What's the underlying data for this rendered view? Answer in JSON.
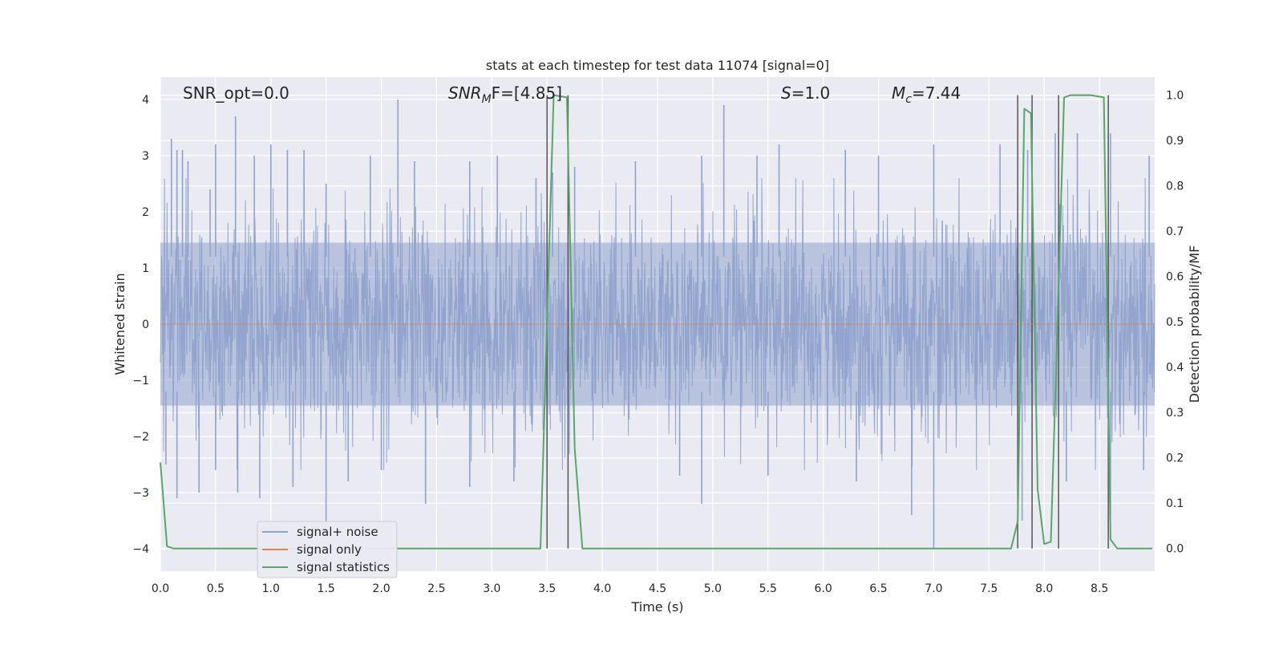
{
  "chart_data": {
    "type": "line",
    "title": "stats at each timestep for test data 11074 [signal=0]",
    "xlabel": "Time (s)",
    "ylabel_left": "Whitened strain",
    "ylabel_right": "Detection probability/MF",
    "xlim": [
      0,
      9
    ],
    "ylim_left": [
      -4.4,
      4.4
    ],
    "ylim_right": [
      -0.05,
      1.04
    ],
    "x_ticks": [
      "0.0",
      "0.5",
      "1.0",
      "1.5",
      "2.0",
      "2.5",
      "3.0",
      "3.5",
      "4.0",
      "4.5",
      "5.0",
      "5.5",
      "6.0",
      "6.5",
      "7.0",
      "7.5",
      "8.0",
      "8.5"
    ],
    "x_tick_values": [
      0,
      0.5,
      1,
      1.5,
      2,
      2.5,
      3,
      3.5,
      4,
      4.5,
      5,
      5.5,
      6,
      6.5,
      7,
      7.5,
      8,
      8.5
    ],
    "y_left_ticks": [
      "4",
      "3",
      "2",
      "1",
      "0",
      "−1",
      "−2",
      "−3",
      "−4"
    ],
    "y_left_tick_values": [
      4,
      3,
      2,
      1,
      0,
      -1,
      -2,
      -3,
      -4
    ],
    "y_right_ticks": [
      "1.0",
      "0.9",
      "0.8",
      "0.7",
      "0.6",
      "0.5",
      "0.4",
      "0.3",
      "0.2",
      "0.1",
      "0.0"
    ],
    "y_right_tick_values": [
      1.0,
      0.9,
      0.8,
      0.7,
      0.6,
      0.5,
      0.4,
      0.3,
      0.2,
      0.1,
      0.0
    ],
    "grid": true,
    "legend_position": "lower-left",
    "annotations": {
      "snr_opt": "SNR_opt=0.0",
      "snr_mf_main": "SNR",
      "snr_mf_sub": "M",
      "snr_mf_rest": "F=[4.85]",
      "s_main": "S",
      "s_rest": "=1.0",
      "mc_main": "M",
      "mc_sub": "c",
      "mc_rest": "=7.44"
    },
    "series": [
      {
        "name": "signal+ noise",
        "color": "#8fa3cc",
        "axis": "left",
        "description_values": "whitened noisy strain, roughly ±1.5 typical, peaks to about ±4",
        "peaks_x": [
          0.1,
          0.15,
          0.2,
          0.25,
          0.45,
          0.5,
          0.68,
          0.85,
          1.0,
          1.15,
          1.3,
          1.5,
          1.9,
          2.15,
          2.3,
          2.8,
          3.05,
          3.4,
          3.55,
          3.75,
          4.3,
          4.9,
          5.1,
          5.4,
          5.6,
          6.2,
          6.5,
          7.0,
          7.6,
          7.85,
          8.1,
          8.3,
          8.6,
          8.95
        ],
        "peaks_y": [
          3.3,
          3.1,
          3.1,
          2.9,
          2.4,
          3.2,
          3.7,
          3.0,
          3.2,
          3.1,
          3.1,
          2.5,
          3.0,
          4.0,
          2.9,
          2.9,
          3.0,
          2.6,
          2.7,
          2.8,
          2.9,
          3.0,
          3.9,
          3.0,
          3.2,
          3.1,
          3.0,
          3.2,
          3.2,
          3.1,
          3.4,
          3.4,
          3.4,
          3.0
        ],
        "troughs_x": [
          0.05,
          0.15,
          0.35,
          0.5,
          0.7,
          0.9,
          1.2,
          1.5,
          1.7,
          2.0,
          2.4,
          2.8,
          3.2,
          3.5,
          4.7,
          4.9,
          5.5,
          6.3,
          6.8,
          7.0,
          7.8,
          8.2,
          8.6,
          8.9
        ],
        "troughs_y": [
          -2.5,
          -3.1,
          -3.0,
          -2.6,
          -3.0,
          -3.1,
          -2.9,
          -3.8,
          -2.8,
          -2.6,
          -3.2,
          -2.9,
          -2.8,
          -2.6,
          -2.7,
          -3.2,
          -2.7,
          -2.8,
          -3.4,
          -4.0,
          -3.5,
          -2.8,
          -3.4,
          -2.6
        ]
      },
      {
        "name": "signal only",
        "color": "#dd8452",
        "axis": "left",
        "x": [
          0,
          9
        ],
        "y": [
          0,
          0
        ]
      },
      {
        "name": "signal statistics",
        "color": "#55a868",
        "axis": "right",
        "x": [
          0.0,
          0.06,
          0.12,
          3.44,
          3.5,
          3.56,
          3.68,
          3.75,
          3.82,
          7.7,
          7.76,
          7.82,
          7.88,
          7.94,
          8.0,
          8.06,
          8.12,
          8.18,
          8.24,
          8.3,
          8.42,
          8.54,
          8.6,
          8.66,
          8.72,
          8.98
        ],
        "y": [
          0.19,
          0.005,
          0.0,
          0.0,
          0.5,
          1.0,
          0.995,
          0.22,
          0.0,
          0.0,
          0.06,
          0.97,
          0.96,
          0.13,
          0.01,
          0.015,
          0.5,
          0.995,
          1.0,
          1.0,
          1.0,
          0.995,
          0.02,
          0.0,
          0.0,
          0.0
        ]
      }
    ],
    "vertical_lines_x": [
      3.5,
      3.69,
      7.76,
      7.89,
      8.13,
      8.58
    ]
  }
}
